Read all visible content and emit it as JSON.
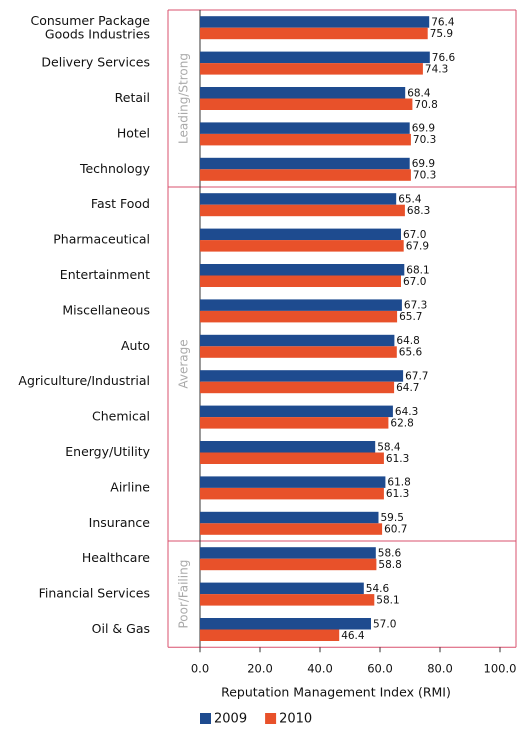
{
  "chart_data": {
    "type": "bar",
    "orientation": "horizontal",
    "x_label": "Reputation Management Index (RMI)",
    "categories": [
      "Consumer Package\nGoods Industries",
      "Delivery Services",
      "Retail",
      "Hotel",
      "Technology",
      "Fast Food",
      "Pharmaceutical",
      "Entertainment",
      "Miscellaneous",
      "Auto",
      "Agriculture/Industrial",
      "Chemical",
      "Energy/Utility",
      "Airline",
      "Insurance",
      "Healthcare",
      "Financial Services",
      "Oil & Gas"
    ],
    "groups": [
      {
        "name": "Leading/Strong",
        "size": 5
      },
      {
        "name": "Average",
        "size": 10
      },
      {
        "name": "Poor/Failing",
        "size": 3
      }
    ],
    "series": [
      {
        "name": "2009",
        "color": "#1e4b8f",
        "values": [
          76.4,
          76.6,
          68.4,
          69.9,
          69.9,
          65.4,
          67,
          68.1,
          67.3,
          64.8,
          67.7,
          64.3,
          58.4,
          61.8,
          59.5,
          58.6,
          54.6,
          57
        ],
        "value_labels": [
          "76.4",
          "76.6",
          "68.4",
          "69.9",
          "69.9",
          "65.4",
          "67.0",
          "68.1",
          "67.3",
          "64.8",
          "67.7",
          "64.3",
          "58.4",
          "61.8",
          "59.5",
          "58.6",
          "54.6",
          "57.0"
        ]
      },
      {
        "name": "2010",
        "color": "#e8512a",
        "values": [
          75.9,
          74.3,
          70.8,
          70.3,
          70.3,
          68.3,
          67.9,
          67,
          65.7,
          65.6,
          64.7,
          62.8,
          61.3,
          61.3,
          60.7,
          58.8,
          58.1,
          46.4
        ],
        "value_labels": [
          "75.9",
          "74.3",
          "70.8",
          "70.3",
          "70.3",
          "68.3",
          "67.9",
          "67.0",
          "65.7",
          "65.6",
          "64.7",
          "62.8",
          "61.3",
          "61.3",
          "60.7",
          "58.8",
          "58.1",
          "46.4"
        ]
      }
    ],
    "xlim": [
      0,
      100
    ],
    "xticks": [
      {
        "value": 0,
        "label": "0.0"
      },
      {
        "value": 20,
        "label": "20.0"
      },
      {
        "value": 40,
        "label": "40.0"
      },
      {
        "value": 60,
        "label": "60.0"
      },
      {
        "value": 80,
        "label": "80.0"
      },
      {
        "value": 100,
        "label": "100.0"
      }
    ],
    "legend": "bottom"
  }
}
